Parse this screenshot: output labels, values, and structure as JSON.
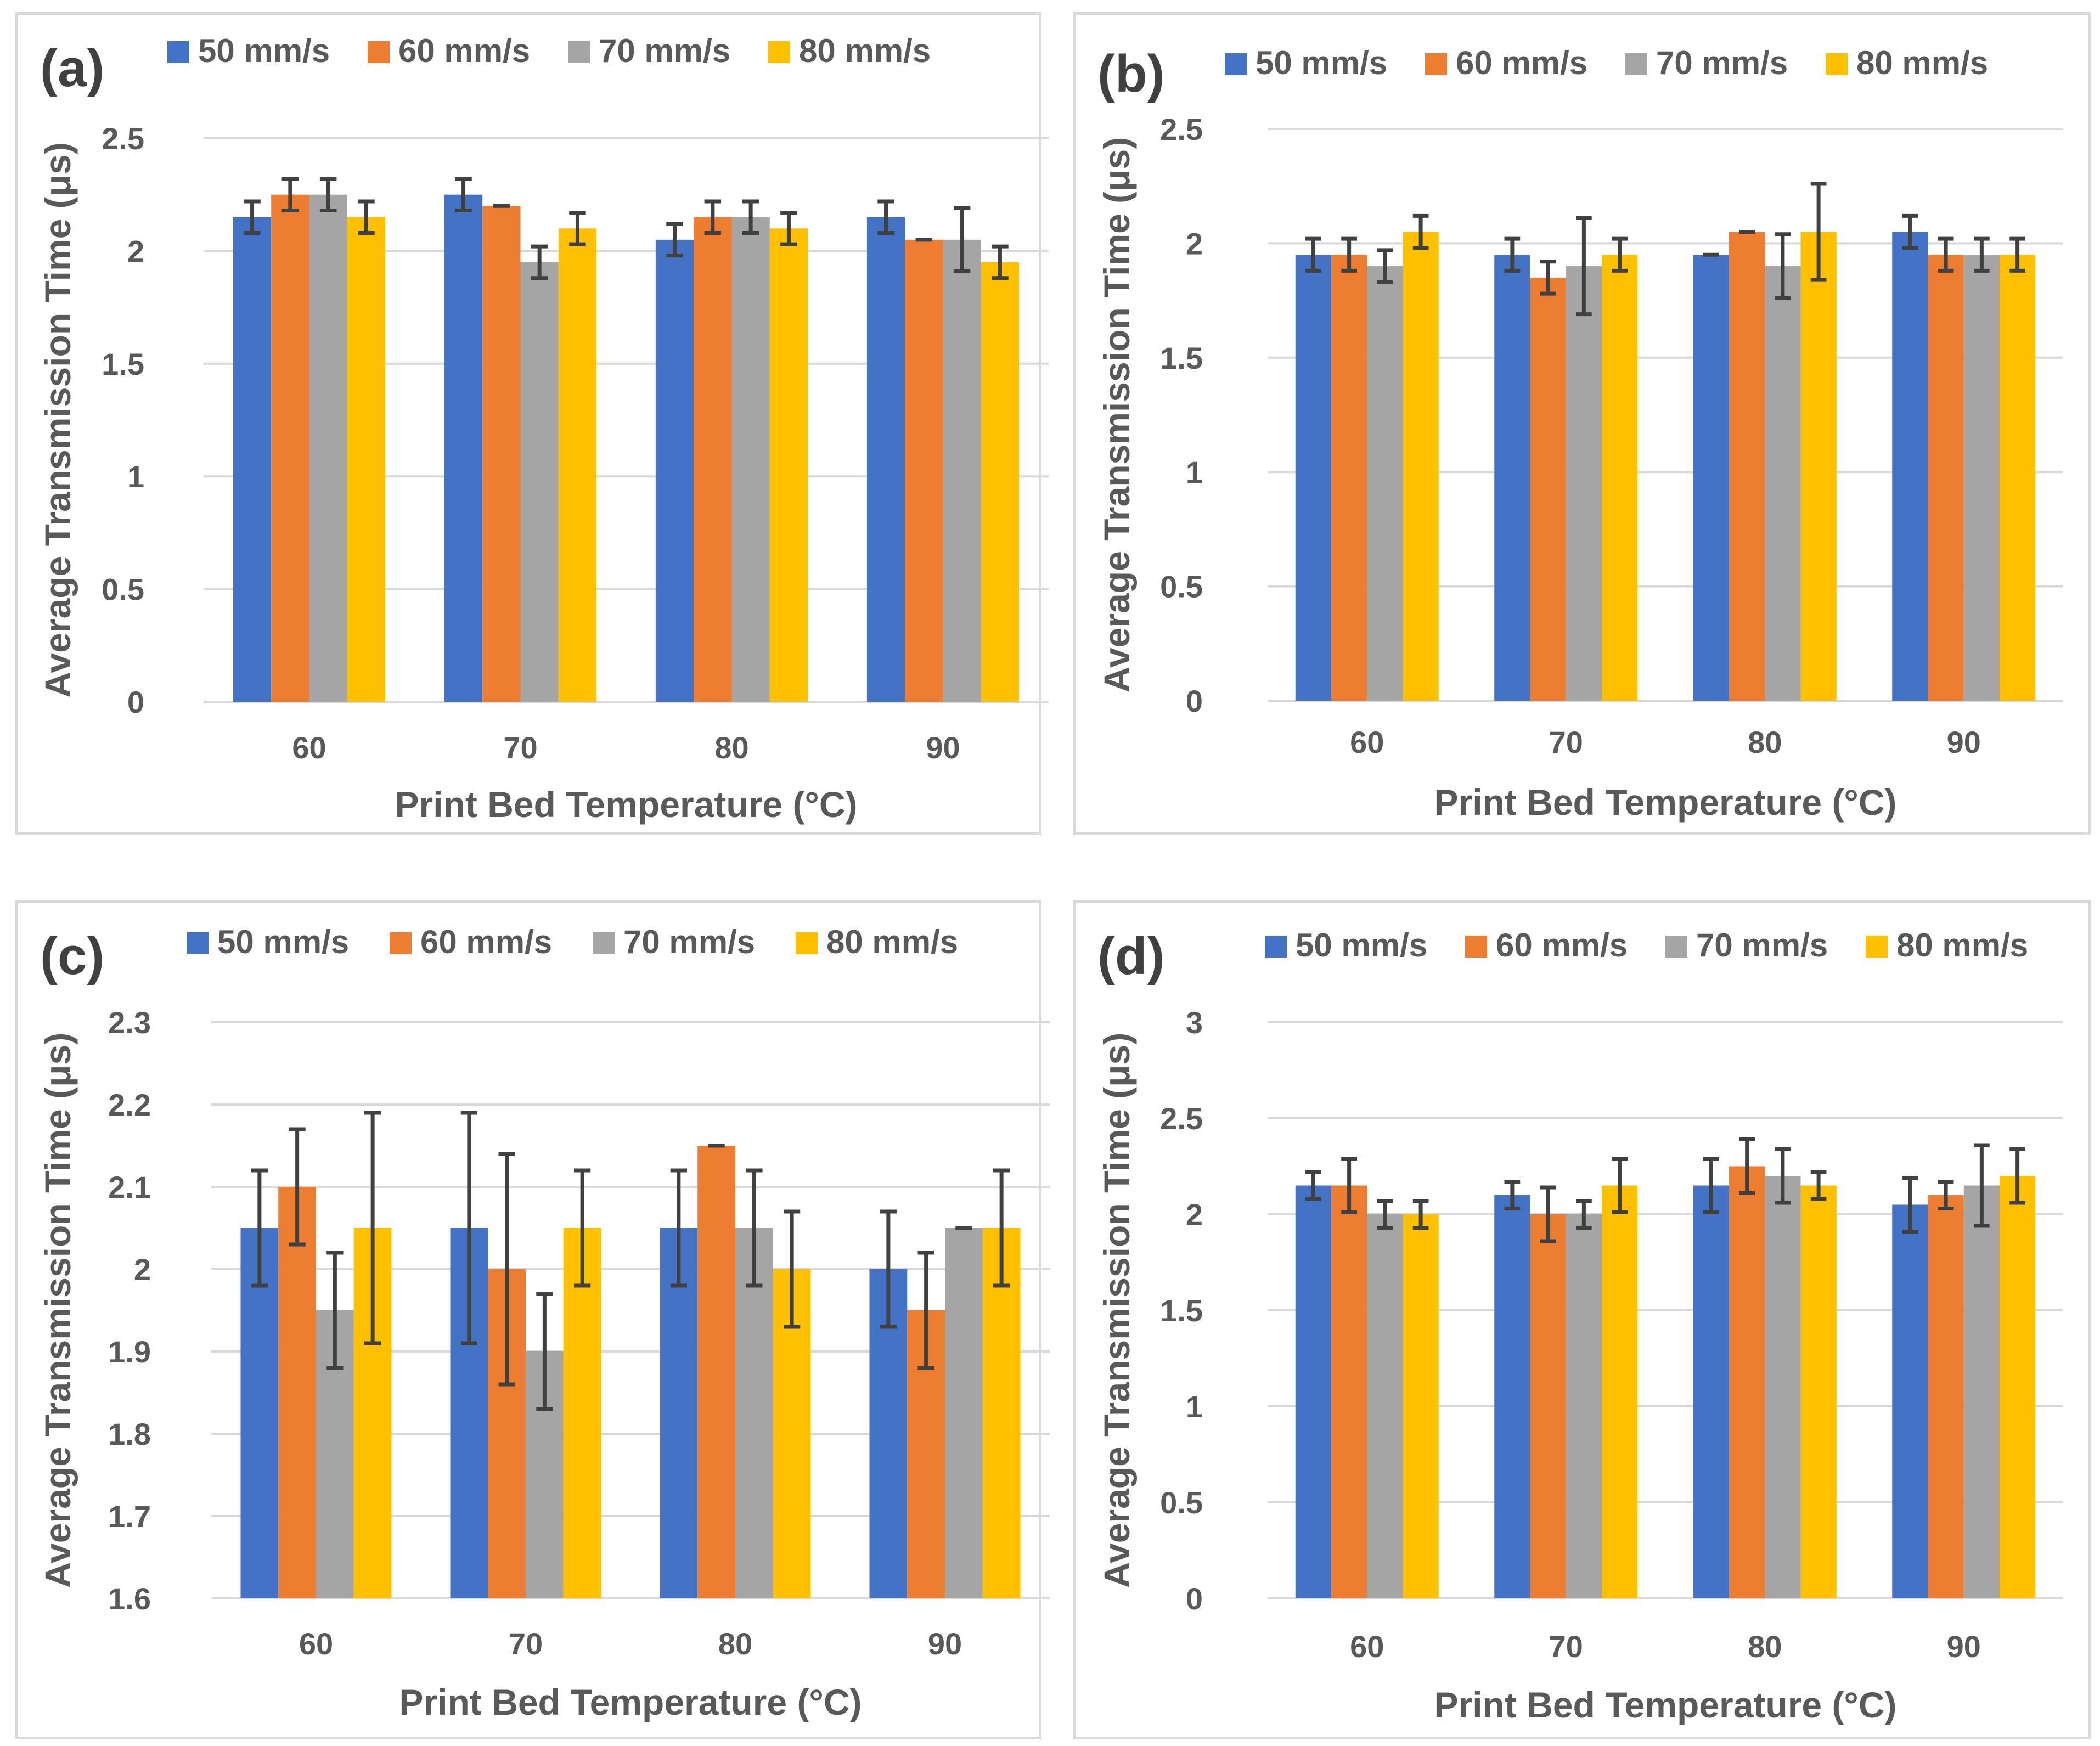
{
  "legend_labels": [
    "50 mm/s",
    "60 mm/s",
    "70 mm/s",
    "80 mm/s"
  ],
  "colors": {
    "s50": "#4472C4",
    "s60": "#ED7D31",
    "s70": "#A5A5A5",
    "s80": "#FFC000",
    "error_bar": "#404040",
    "grid": "#d9d9d9"
  },
  "chart_data": [
    {
      "panel": "(a)",
      "type": "bar",
      "xlabel": "Print Bed Temperature (°C)",
      "ylabel": "Average Transmission Time (μs)",
      "categories": [
        "60",
        "70",
        "80",
        "90"
      ],
      "ylim": [
        0,
        2.5
      ],
      "yticks": [
        0,
        0.5,
        1,
        1.5,
        2,
        2.5
      ],
      "ytick_labels": [
        "0",
        "0.5",
        "1",
        "1.5",
        "2",
        "2.5"
      ],
      "series": [
        {
          "name": "50 mm/s",
          "values": [
            2.15,
            2.25,
            2.05,
            2.15
          ],
          "errors": [
            0.07,
            0.07,
            0.07,
            0.07
          ]
        },
        {
          "name": "60 mm/s",
          "values": [
            2.25,
            2.2,
            2.15,
            2.05
          ],
          "errors": [
            0.07,
            0.0,
            0.07,
            0.0
          ]
        },
        {
          "name": "70 mm/s",
          "values": [
            2.25,
            1.95,
            2.15,
            2.05
          ],
          "errors": [
            0.07,
            0.07,
            0.07,
            0.14
          ]
        },
        {
          "name": "80 mm/s",
          "values": [
            2.15,
            2.1,
            2.1,
            1.95
          ],
          "errors": [
            0.07,
            0.07,
            0.07,
            0.07
          ]
        }
      ]
    },
    {
      "panel": "(b)",
      "type": "bar",
      "xlabel": "Print Bed Temperature (°C)",
      "ylabel": "Average Transmission Time (μs)",
      "categories": [
        "60",
        "70",
        "80",
        "90"
      ],
      "ylim": [
        0,
        2.5
      ],
      "yticks": [
        0,
        0.5,
        1,
        1.5,
        2,
        2.5
      ],
      "ytick_labels": [
        "0",
        "0.5",
        "1",
        "1.5",
        "2",
        "2.5"
      ],
      "series": [
        {
          "name": "50 mm/s",
          "values": [
            1.95,
            1.95,
            1.95,
            2.05
          ],
          "errors": [
            0.07,
            0.07,
            0.0,
            0.07
          ]
        },
        {
          "name": "60 mm/s",
          "values": [
            1.95,
            1.85,
            2.05,
            1.95
          ],
          "errors": [
            0.07,
            0.07,
            0.0,
            0.07
          ]
        },
        {
          "name": "70 mm/s",
          "values": [
            1.9,
            1.9,
            1.9,
            1.95
          ],
          "errors": [
            0.07,
            0.21,
            0.14,
            0.07
          ]
        },
        {
          "name": "80 mm/s",
          "values": [
            2.05,
            1.95,
            2.05,
            1.95
          ],
          "errors": [
            0.07,
            0.07,
            0.21,
            0.07
          ]
        }
      ]
    },
    {
      "panel": "(c)",
      "type": "bar",
      "xlabel": "Print Bed Temperature (°C)",
      "ylabel": "Average Transmission Time (μs)",
      "categories": [
        "60",
        "70",
        "80",
        "90"
      ],
      "ylim": [
        1.6,
        2.3
      ],
      "yticks": [
        1.6,
        1.7,
        1.8,
        1.9,
        2.0,
        2.1,
        2.2,
        2.3
      ],
      "ytick_labels": [
        "1.6",
        "1.7",
        "1.8",
        "1.9",
        "2",
        "2.1",
        "2.2",
        "2.3"
      ],
      "series": [
        {
          "name": "50 mm/s",
          "values": [
            2.05,
            2.05,
            2.05,
            2.0
          ],
          "errors": [
            0.07,
            0.14,
            0.07,
            0.07
          ]
        },
        {
          "name": "60 mm/s",
          "values": [
            2.1,
            2.0,
            2.15,
            1.95
          ],
          "errors": [
            0.07,
            0.14,
            0.0,
            0.07
          ]
        },
        {
          "name": "70 mm/s",
          "values": [
            1.95,
            1.9,
            2.05,
            2.05
          ],
          "errors": [
            0.07,
            0.07,
            0.07,
            0.0
          ]
        },
        {
          "name": "80 mm/s",
          "values": [
            2.05,
            2.05,
            2.0,
            2.05
          ],
          "errors": [
            0.14,
            0.07,
            0.07,
            0.07
          ]
        }
      ]
    },
    {
      "panel": "(d)",
      "type": "bar",
      "xlabel": "Print Bed Temperature (°C)",
      "ylabel": "Average Transmission Time (μs)",
      "categories": [
        "60",
        "70",
        "80",
        "90"
      ],
      "ylim": [
        0,
        3
      ],
      "yticks": [
        0,
        0.5,
        1,
        1.5,
        2,
        2.5,
        3
      ],
      "ytick_labels": [
        "0",
        "0.5",
        "1",
        "1.5",
        "2",
        "2.5",
        "3"
      ],
      "series": [
        {
          "name": "50 mm/s",
          "values": [
            2.15,
            2.1,
            2.15,
            2.05
          ],
          "errors": [
            0.07,
            0.07,
            0.14,
            0.14
          ]
        },
        {
          "name": "60 mm/s",
          "values": [
            2.15,
            2.0,
            2.25,
            2.1
          ],
          "errors": [
            0.14,
            0.14,
            0.14,
            0.07
          ]
        },
        {
          "name": "70 mm/s",
          "values": [
            2.0,
            2.0,
            2.2,
            2.15
          ],
          "errors": [
            0.07,
            0.07,
            0.14,
            0.21
          ]
        },
        {
          "name": "80 mm/s",
          "values": [
            2.0,
            2.15,
            2.15,
            2.2
          ],
          "errors": [
            0.07,
            0.14,
            0.07,
            0.14
          ]
        }
      ]
    }
  ]
}
